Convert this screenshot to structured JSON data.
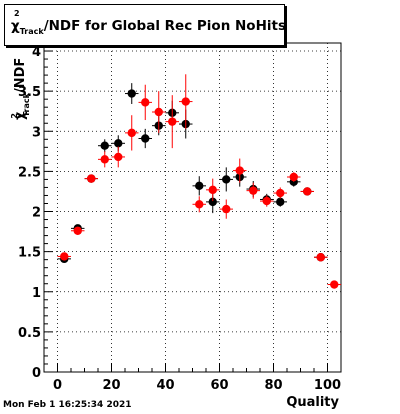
{
  "title_box": {
    "chi": "χ",
    "sup": "2",
    "sub": "Track",
    "rest": "/NDF for Global Rec Pion NoHits"
  },
  "timestamp": "Mon Feb  1 16:25:34 2021",
  "colors": {
    "series_a": "#000000",
    "series_b": "#ff0000",
    "axis": "#000000",
    "grid": "#000000",
    "background": "#ffffff"
  },
  "chart_data": {
    "type": "scatter",
    "title": "χ²Track/NDF for Global Rec Pion NoHits",
    "xlabel": "Quality",
    "ylabel": "χ²Track/NDF",
    "xlim": [
      -5,
      105
    ],
    "ylim": [
      0,
      4.1
    ],
    "grid": true,
    "x_ticks": [
      0,
      20,
      40,
      60,
      80,
      100
    ],
    "x_tick_labels": [
      "0",
      "20",
      "40",
      "60",
      "80",
      "100"
    ],
    "y_ticks": [
      0,
      0.5,
      1,
      1.5,
      2,
      2.5,
      3,
      3.5,
      4
    ],
    "y_tick_labels": [
      "0",
      "0.5",
      "1",
      "1.5",
      "2",
      "2.5",
      "3",
      "3.5",
      "4"
    ],
    "series": [
      {
        "color": "#000000",
        "x": [
          2.5,
          7.5,
          12.5,
          17.5,
          22.5,
          27.5,
          32.5,
          37.5,
          42.5,
          47.5,
          52.5,
          57.5,
          62.5,
          67.5,
          72.5,
          77.5,
          82.5,
          87.5,
          92.5,
          97.5
        ],
        "y": [
          1.41,
          1.79,
          2.41,
          2.82,
          2.85,
          3.47,
          2.91,
          3.07,
          3.23,
          3.09,
          2.32,
          2.12,
          2.4,
          2.43,
          2.28,
          2.15,
          2.12,
          2.37,
          2.25,
          1.43
        ],
        "yerr": [
          0.04,
          0.04,
          0.05,
          0.08,
          0.1,
          0.13,
          0.12,
          0.12,
          0.15,
          0.18,
          0.12,
          0.14,
          0.15,
          0.12,
          0.1,
          0.07,
          0.06,
          0.06,
          0.04,
          0.04
        ]
      },
      {
        "color": "#ff0000",
        "x": [
          2.5,
          7.5,
          12.5,
          17.5,
          22.5,
          27.5,
          32.5,
          37.5,
          42.5,
          47.5,
          52.5,
          57.5,
          62.5,
          67.5,
          72.5,
          77.5,
          82.5,
          87.5,
          92.5,
          97.5,
          102.5
        ],
        "y": [
          1.44,
          1.76,
          2.41,
          2.65,
          2.68,
          2.98,
          3.36,
          3.24,
          3.12,
          3.37,
          2.09,
          2.27,
          2.03,
          2.51,
          2.26,
          2.13,
          2.23,
          2.43,
          2.25,
          1.43,
          1.09
        ],
        "yerr": [
          0.04,
          0.05,
          0.05,
          0.1,
          0.13,
          0.22,
          0.22,
          0.26,
          0.33,
          0.34,
          0.1,
          0.14,
          0.12,
          0.15,
          0.1,
          0.07,
          0.07,
          0.06,
          0.04,
          0.03,
          0.03
        ]
      }
    ]
  }
}
